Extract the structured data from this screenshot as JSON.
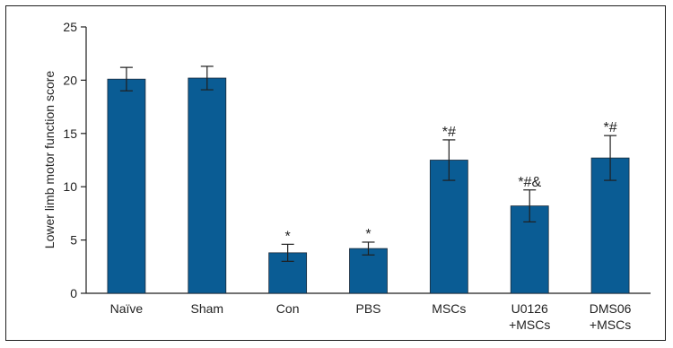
{
  "chart_data": {
    "type": "bar",
    "categories": [
      [
        "Naïve"
      ],
      [
        "Sham"
      ],
      [
        "Con"
      ],
      [
        "PBS"
      ],
      [
        "MSCs"
      ],
      [
        "U0126",
        "+MSCs"
      ],
      [
        "DMS06",
        "+MSCs"
      ]
    ],
    "values": [
      20.1,
      20.2,
      3.8,
      4.2,
      12.5,
      8.2,
      12.7
    ],
    "errors": [
      1.1,
      1.1,
      0.8,
      0.6,
      1.9,
      1.5,
      2.1
    ],
    "annotations": [
      "",
      "",
      "*",
      "*",
      "*#",
      "*#&",
      "*#"
    ],
    "ylabel": "Lower limb motor function score",
    "xlabel": "",
    "title": "",
    "ylim": [
      0,
      25
    ],
    "yticks": [
      0,
      5,
      10,
      15,
      20,
      25
    ],
    "bar_color": "#0a5c94",
    "grid": false
  }
}
